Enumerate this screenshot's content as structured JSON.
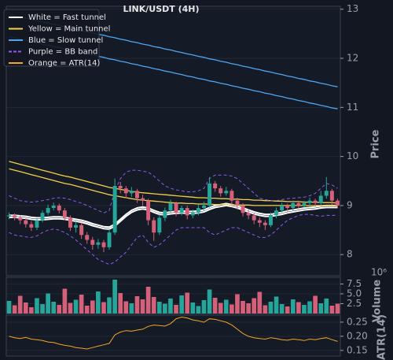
{
  "chart_data": {
    "type": "candlestick",
    "title": "LINK/USDT (4H)",
    "ylabel": "Price",
    "ylim": [
      7.57,
      13.06
    ],
    "yticks": [
      8,
      9,
      10,
      11,
      12,
      13
    ],
    "grid": true,
    "legend_loc": "upper left",
    "up_color": "#26a69a",
    "down_color": "#d4607a",
    "open": [
      8.78,
      8.8,
      8.75,
      8.7,
      8.62,
      8.55,
      8.7,
      8.85,
      8.95,
      9.0,
      8.9,
      8.75,
      8.55,
      8.6,
      8.4,
      8.3,
      8.2,
      8.25,
      8.15,
      8.45,
      9.4,
      9.35,
      9.25,
      9.3,
      9.15,
      9.1,
      8.7,
      8.45,
      8.75,
      8.9,
      9.05,
      8.85,
      8.95,
      8.8,
      8.85,
      8.95,
      9.0,
      9.45,
      9.35,
      9.25,
      9.3,
      9.1,
      9.0,
      8.85,
      8.8,
      8.7,
      8.65,
      8.6,
      8.8,
      8.9,
      9.0,
      8.95,
      9.05,
      9.0,
      9.05,
      9.1,
      9.05,
      9.2,
      9.3,
      9.1
    ],
    "high": [
      8.86,
      8.84,
      8.8,
      8.74,
      8.68,
      8.74,
      8.9,
      9.02,
      9.06,
      9.04,
      8.95,
      8.8,
      8.68,
      8.65,
      8.46,
      8.36,
      8.32,
      8.3,
      8.52,
      9.55,
      9.48,
      9.4,
      9.38,
      9.34,
      9.22,
      9.14,
      8.76,
      8.82,
      8.96,
      9.12,
      9.08,
      9.0,
      9.0,
      8.92,
      9.02,
      9.08,
      9.58,
      9.5,
      9.4,
      9.38,
      9.34,
      9.16,
      9.05,
      8.92,
      8.85,
      8.76,
      8.7,
      8.86,
      8.96,
      9.06,
      9.04,
      9.1,
      9.08,
      9.1,
      9.16,
      9.14,
      9.3,
      9.58,
      9.34,
      9.14
    ],
    "low": [
      8.72,
      8.7,
      8.62,
      8.55,
      8.48,
      8.5,
      8.66,
      8.8,
      8.9,
      8.84,
      8.7,
      8.48,
      8.45,
      8.32,
      8.22,
      8.1,
      8.12,
      8.05,
      8.1,
      8.4,
      9.25,
      9.15,
      9.18,
      9.05,
      9.0,
      8.6,
      8.28,
      8.4,
      8.68,
      8.85,
      8.78,
      8.8,
      8.72,
      8.74,
      8.8,
      8.9,
      8.96,
      9.28,
      9.18,
      9.2,
      9.02,
      8.92,
      8.78,
      8.72,
      8.62,
      8.56,
      8.5,
      8.56,
      8.74,
      8.86,
      8.88,
      8.9,
      8.94,
      8.96,
      9.0,
      8.98,
      9.0,
      9.14,
      9.02,
      8.95
    ],
    "close": [
      8.8,
      8.75,
      8.7,
      8.62,
      8.55,
      8.7,
      8.85,
      8.95,
      9.0,
      8.9,
      8.75,
      8.55,
      8.6,
      8.4,
      8.3,
      8.2,
      8.25,
      8.15,
      8.45,
      9.4,
      9.35,
      9.25,
      9.3,
      9.15,
      9.1,
      8.7,
      8.45,
      8.75,
      8.9,
      9.05,
      8.85,
      8.95,
      8.8,
      8.85,
      8.95,
      9.0,
      9.45,
      9.35,
      9.25,
      9.3,
      9.1,
      9.0,
      8.85,
      8.8,
      8.7,
      8.65,
      8.6,
      8.8,
      8.9,
      9.0,
      8.95,
      9.05,
      9.0,
      9.05,
      9.1,
      9.05,
      9.2,
      9.3,
      9.1,
      9.0
    ],
    "tunnels": [
      {
        "name": "White = Fast tunnel",
        "color": "#ffffff",
        "dashed": false,
        "lines": [
          [
            8.8,
            8.8,
            8.79,
            8.78,
            8.76,
            8.75,
            8.75,
            8.76,
            8.77,
            8.77,
            8.76,
            8.74,
            8.72,
            8.7,
            8.67,
            8.63,
            8.6,
            8.57,
            8.56,
            8.62,
            8.72,
            8.82,
            8.9,
            8.95,
            8.97,
            8.95,
            8.9,
            8.86,
            8.85,
            8.87,
            8.88,
            8.89,
            8.88,
            8.88,
            8.89,
            8.91,
            8.96,
            9.0,
            9.02,
            9.04,
            9.02,
            8.99,
            8.95,
            8.91,
            8.87,
            8.84,
            8.82,
            8.82,
            8.84,
            8.86,
            8.89,
            8.91,
            8.93,
            8.95,
            8.96,
            8.97,
            8.99,
            9.0,
            9.0,
            9.0
          ],
          [
            8.76,
            8.76,
            8.75,
            8.74,
            8.72,
            8.71,
            8.71,
            8.72,
            8.73,
            8.73,
            8.72,
            8.7,
            8.68,
            8.66,
            8.63,
            8.59,
            8.56,
            8.53,
            8.52,
            8.58,
            8.68,
            8.78,
            8.86,
            8.91,
            8.93,
            8.91,
            8.86,
            8.82,
            8.81,
            8.83,
            8.84,
            8.85,
            8.84,
            8.84,
            8.85,
            8.87,
            8.92,
            8.96,
            8.98,
            9.0,
            8.98,
            8.95,
            8.91,
            8.87,
            8.83,
            8.8,
            8.78,
            8.78,
            8.8,
            8.82,
            8.85,
            8.87,
            8.89,
            8.91,
            8.92,
            8.93,
            8.95,
            8.96,
            8.96,
            8.96
          ]
        ]
      },
      {
        "name": "Yellow = Main tunnel",
        "color": "#f5d04a",
        "dashed": false,
        "lines": [
          [
            9.9,
            9.87,
            9.84,
            9.81,
            9.78,
            9.75,
            9.72,
            9.69,
            9.66,
            9.63,
            9.6,
            9.58,
            9.55,
            9.52,
            9.49,
            9.46,
            9.43,
            9.4,
            9.37,
            9.35,
            9.33,
            9.31,
            9.29,
            9.27,
            9.26,
            9.25,
            9.24,
            9.23,
            9.22,
            9.21,
            9.2,
            9.19,
            9.18,
            9.17,
            9.16,
            9.16,
            9.15,
            9.15,
            9.14,
            9.14,
            9.13,
            9.13,
            9.12,
            9.12,
            9.11,
            9.11,
            9.1,
            9.1,
            9.09,
            9.09,
            9.08,
            9.08,
            9.08,
            9.07,
            9.07,
            9.07,
            9.06,
            9.06,
            9.06,
            9.05
          ],
          [
            9.75,
            9.72,
            9.69,
            9.66,
            9.63,
            9.6,
            9.57,
            9.54,
            9.51,
            9.48,
            9.45,
            9.43,
            9.4,
            9.37,
            9.34,
            9.31,
            9.28,
            9.25,
            9.22,
            9.2,
            9.18,
            9.16,
            9.14,
            9.12,
            9.11,
            9.1,
            9.09,
            9.08,
            9.07,
            9.06,
            9.05,
            9.05,
            9.04,
            9.04,
            9.03,
            9.03,
            9.03,
            9.02,
            9.02,
            9.02,
            9.01,
            9.01,
            9.01,
            9.01,
            9.0,
            9.0,
            9.0,
            9.0,
            9.0,
            9.0,
            9.0,
            9.0,
            9.0,
            9.0,
            9.0,
            9.0,
            9.0,
            9.0,
            9.0,
            9.0
          ]
        ]
      },
      {
        "name": "Blue = Slow tunnel",
        "color": "#4da6f0",
        "dashed": false,
        "lines": [
          [
            12.89,
            12.87,
            12.84,
            12.82,
            12.79,
            12.77,
            12.74,
            12.72,
            12.69,
            12.67,
            12.64,
            12.62,
            12.59,
            12.57,
            12.54,
            12.52,
            12.49,
            12.47,
            12.44,
            12.42,
            12.39,
            12.37,
            12.34,
            12.32,
            12.29,
            12.27,
            12.24,
            12.22,
            12.19,
            12.17,
            12.14,
            12.12,
            12.09,
            12.07,
            12.04,
            12.02,
            11.99,
            11.97,
            11.94,
            11.92,
            11.89,
            11.87,
            11.84,
            11.82,
            11.79,
            11.77,
            11.74,
            11.72,
            11.69,
            11.67,
            11.64,
            11.62,
            11.59,
            11.57,
            11.54,
            11.52,
            11.49,
            11.47,
            11.44,
            11.42
          ],
          [
            12.44,
            12.42,
            12.39,
            12.37,
            12.34,
            12.32,
            12.29,
            12.27,
            12.24,
            12.22,
            12.19,
            12.17,
            12.14,
            12.12,
            12.09,
            12.07,
            12.04,
            12.02,
            11.99,
            11.97,
            11.94,
            11.92,
            11.89,
            11.87,
            11.84,
            11.82,
            11.79,
            11.77,
            11.74,
            11.72,
            11.69,
            11.67,
            11.64,
            11.62,
            11.59,
            11.57,
            11.54,
            11.52,
            11.49,
            11.47,
            11.44,
            11.42,
            11.39,
            11.37,
            11.34,
            11.32,
            11.29,
            11.27,
            11.24,
            11.22,
            11.19,
            11.17,
            11.14,
            11.12,
            11.09,
            11.07,
            11.04,
            11.02,
            10.99,
            10.97
          ]
        ]
      },
      {
        "name": "Purple = BB band",
        "color": "#8a5cf0",
        "dashed": true,
        "lines": [
          [
            9.2,
            9.15,
            9.1,
            9.08,
            9.07,
            9.08,
            9.1,
            9.12,
            9.15,
            9.16,
            9.15,
            9.12,
            9.08,
            9.05,
            9.0,
            8.95,
            8.9,
            8.85,
            8.9,
            9.3,
            9.55,
            9.68,
            9.72,
            9.72,
            9.7,
            9.68,
            9.6,
            9.5,
            9.4,
            9.35,
            9.32,
            9.3,
            9.28,
            9.28,
            9.3,
            9.35,
            9.55,
            9.62,
            9.62,
            9.62,
            9.6,
            9.55,
            9.45,
            9.35,
            9.25,
            9.15,
            9.12,
            9.1,
            9.1,
            9.12,
            9.14,
            9.15,
            9.16,
            9.17,
            9.2,
            9.25,
            9.35,
            9.45,
            9.42,
            9.35
          ],
          [
            8.45,
            8.4,
            8.38,
            8.36,
            8.35,
            8.38,
            8.45,
            8.5,
            8.52,
            8.5,
            8.45,
            8.38,
            8.3,
            8.2,
            8.1,
            8.0,
            7.9,
            7.85,
            7.8,
            7.85,
            7.95,
            8.05,
            8.2,
            8.35,
            8.4,
            8.25,
            8.15,
            8.2,
            8.3,
            8.4,
            8.5,
            8.55,
            8.55,
            8.55,
            8.55,
            8.55,
            8.45,
            8.4,
            8.45,
            8.5,
            8.55,
            8.55,
            8.5,
            8.45,
            8.4,
            8.35,
            8.35,
            8.4,
            8.5,
            8.6,
            8.7,
            8.75,
            8.8,
            8.82,
            8.82,
            8.8,
            8.78,
            8.8,
            8.8,
            8.8
          ]
        ]
      }
    ],
    "volume": {
      "ylabel": "Volume",
      "exponent": "10⁶",
      "ylim": [
        0,
        9.2
      ],
      "yticks": [
        2.5,
        {
          "value": 5,
          "label": "5.0"
        },
        7.5
      ],
      "values": [
        3.2,
        2.1,
        4.5,
        2.8,
        1.6,
        3.9,
        2.4,
        5.1,
        3.0,
        2.2,
        6.3,
        2.7,
        3.5,
        4.8,
        2.0,
        3.3,
        5.6,
        2.9,
        4.1,
        8.6,
        5.2,
        3.1,
        2.6,
        4.4,
        3.6,
        6.8,
        4.2,
        3.0,
        2.5,
        3.8,
        2.2,
        4.6,
        5.3,
        2.8,
        1.9,
        3.4,
        6.1,
        4.0,
        2.7,
        3.5,
        2.3,
        4.9,
        3.2,
        2.6,
        3.9,
        5.5,
        2.1,
        3.0,
        4.3,
        2.4,
        1.8,
        3.6,
        2.9,
        2.2,
        3.1,
        4.5,
        2.6,
        3.8,
        2.0,
        2.5
      ]
    },
    "atr": {
      "name": "Orange = ATR(14)",
      "ylabel": "ATR(14)",
      "color": "#f5a623",
      "ylim": [
        0.13,
        0.275
      ],
      "yticks": [
        0.15,
        {
          "value": 0.2,
          "label": "0.20"
        },
        0.25
      ],
      "values": [
        0.2,
        0.195,
        0.192,
        0.196,
        0.19,
        0.188,
        0.185,
        0.18,
        0.178,
        0.172,
        0.168,
        0.165,
        0.16,
        0.158,
        0.155,
        0.16,
        0.165,
        0.17,
        0.175,
        0.205,
        0.215,
        0.22,
        0.218,
        0.222,
        0.225,
        0.235,
        0.24,
        0.238,
        0.236,
        0.245,
        0.262,
        0.268,
        0.265,
        0.258,
        0.255,
        0.25,
        0.262,
        0.26,
        0.255,
        0.25,
        0.24,
        0.225,
        0.21,
        0.2,
        0.195,
        0.192,
        0.19,
        0.195,
        0.192,
        0.188,
        0.186,
        0.19,
        0.188,
        0.185,
        0.19,
        0.188,
        0.192,
        0.195,
        0.188,
        0.182
      ]
    }
  }
}
